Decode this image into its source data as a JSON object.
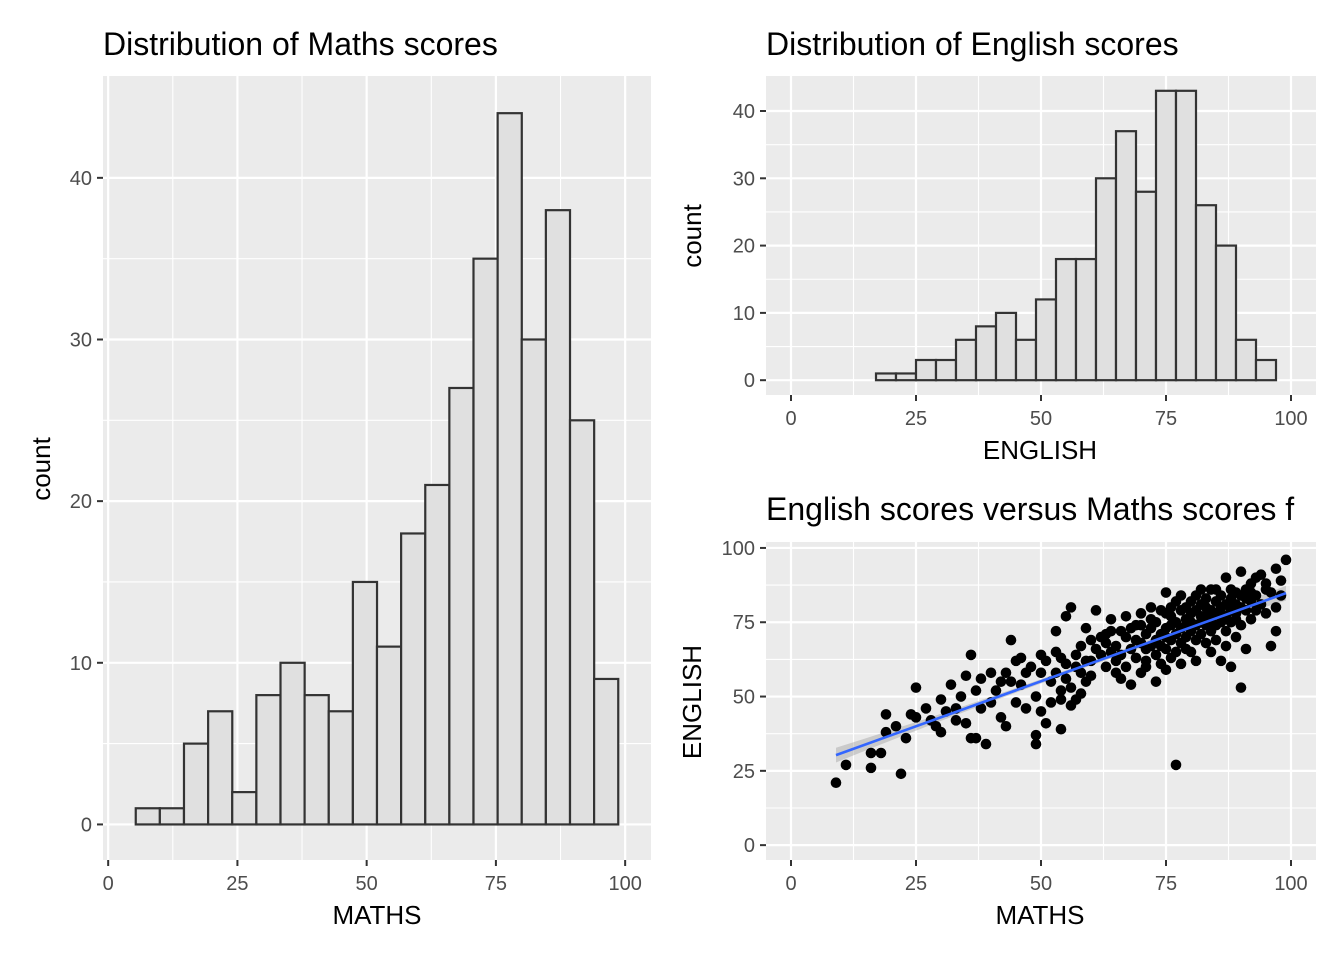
{
  "colors": {
    "panel_background": "#ebebeb",
    "grid": "#ffffff",
    "bar_fill": "#e0e0e0",
    "bar_outline": "#333333",
    "point": "#000000",
    "smooth_line": "#3366ff",
    "confidence_band": "#999999"
  },
  "chart_data": [
    {
      "id": "maths_hist",
      "type": "bar",
      "title": "Distribution of Maths scores",
      "xlabel": "MATHS",
      "ylabel": "count",
      "xlim": [
        -1,
        105
      ],
      "ylim": [
        -2.2,
        46.3
      ],
      "x_ticks": [
        0,
        25,
        50,
        75,
        100
      ],
      "y_ticks": [
        0,
        10,
        20,
        30,
        40
      ],
      "bin_width": 4.67,
      "bin_centers": [
        7.67,
        12.33,
        17.0,
        21.67,
        26.33,
        31.0,
        35.67,
        40.33,
        45.0,
        49.67,
        54.33,
        59.0,
        63.67,
        68.33,
        73.0,
        77.67,
        82.33,
        87.0,
        91.67,
        96.33
      ],
      "values": [
        1,
        1,
        5,
        7,
        2,
        8,
        10,
        8,
        7,
        15,
        11,
        18,
        21,
        27,
        35,
        44,
        30,
        38,
        25,
        9
      ],
      "grid": true,
      "legend": "none"
    },
    {
      "id": "english_hist",
      "type": "bar",
      "title": "Distribution of English scores",
      "xlabel": "ENGLISH",
      "ylabel": "count",
      "xlim": [
        -5,
        105
      ],
      "ylim": [
        -2.2,
        45.2
      ],
      "x_ticks": [
        0,
        25,
        50,
        75,
        100
      ],
      "y_ticks": [
        0,
        10,
        20,
        30,
        40
      ],
      "bin_width": 4.0,
      "bin_centers": [
        19,
        23,
        27,
        31,
        35,
        39,
        43,
        47,
        51,
        55,
        59,
        63,
        67,
        71,
        75,
        79,
        83,
        87,
        91,
        95
      ],
      "values": [
        1,
        1,
        3,
        3,
        6,
        8,
        10,
        6,
        12,
        18,
        18,
        30,
        37,
        28,
        43,
        43,
        26,
        20,
        6,
        3
      ],
      "grid": true,
      "legend": "none"
    },
    {
      "id": "scatter_english_maths",
      "type": "scatter",
      "title": "English scores versus Maths scores f",
      "xlabel": "MATHS",
      "ylabel": "ENGLISH",
      "xlim": [
        -5,
        105
      ],
      "ylim": [
        -5,
        102
      ],
      "x_ticks": [
        0,
        25,
        50,
        75,
        100
      ],
      "y_ticks": [
        0,
        25,
        50,
        75,
        100
      ],
      "grid": true,
      "legend": "none",
      "smooth": {
        "method": "linear",
        "x": [
          9,
          99
        ],
        "y": [
          30.3,
          84.8
        ],
        "band_halfwidth_at_ends": 2.5,
        "band_halfwidth_at_center": 0.7
      },
      "points": [
        [
          9,
          21
        ],
        [
          11,
          27
        ],
        [
          16,
          26
        ],
        [
          16,
          31
        ],
        [
          18,
          31
        ],
        [
          19,
          44
        ],
        [
          19,
          38
        ],
        [
          21,
          40
        ],
        [
          22,
          24
        ],
        [
          23,
          36
        ],
        [
          24,
          44
        ],
        [
          25,
          53
        ],
        [
          25,
          43
        ],
        [
          27,
          46
        ],
        [
          28,
          42
        ],
        [
          29,
          40
        ],
        [
          30,
          38
        ],
        [
          30,
          49
        ],
        [
          31,
          45
        ],
        [
          32,
          54
        ],
        [
          33,
          46
        ],
        [
          33,
          42
        ],
        [
          34,
          50
        ],
        [
          35,
          41
        ],
        [
          35,
          57
        ],
        [
          36,
          36
        ],
        [
          36,
          64
        ],
        [
          37,
          52
        ],
        [
          37,
          36
        ],
        [
          38,
          56
        ],
        [
          38,
          46
        ],
        [
          39,
          34
        ],
        [
          40,
          58
        ],
        [
          40,
          48
        ],
        [
          41,
          52
        ],
        [
          42,
          55
        ],
        [
          42,
          43
        ],
        [
          43,
          40
        ],
        [
          43,
          58
        ],
        [
          44,
          69
        ],
        [
          44,
          55
        ],
        [
          45,
          62
        ],
        [
          45,
          48
        ],
        [
          46,
          63
        ],
        [
          46,
          54
        ],
        [
          47,
          46
        ],
        [
          47,
          58
        ],
        [
          48,
          60
        ],
        [
          49,
          50
        ],
        [
          49,
          37
        ],
        [
          49,
          34
        ],
        [
          50,
          45
        ],
        [
          50,
          58
        ],
        [
          50,
          64
        ],
        [
          51,
          62
        ],
        [
          51,
          41
        ],
        [
          52,
          55
        ],
        [
          52,
          48
        ],
        [
          53,
          65
        ],
        [
          53,
          58
        ],
        [
          53,
          72
        ],
        [
          54,
          52
        ],
        [
          54,
          49
        ],
        [
          54,
          39
        ],
        [
          54,
          63
        ],
        [
          55,
          56
        ],
        [
          55,
          61
        ],
        [
          55,
          77
        ],
        [
          56,
          53
        ],
        [
          56,
          47
        ],
        [
          56,
          80
        ],
        [
          57,
          60
        ],
        [
          57,
          49
        ],
        [
          57,
          64
        ],
        [
          58,
          51
        ],
        [
          58,
          58
        ],
        [
          58,
          67
        ],
        [
          59,
          55
        ],
        [
          59,
          62
        ],
        [
          59,
          73
        ],
        [
          60,
          62
        ],
        [
          60,
          69
        ],
        [
          60,
          57
        ],
        [
          61,
          66
        ],
        [
          61,
          79
        ],
        [
          62,
          70
        ],
        [
          62,
          64
        ],
        [
          63,
          68
        ],
        [
          63,
          60
        ],
        [
          63,
          71
        ],
        [
          64,
          65
        ],
        [
          64,
          72
        ],
        [
          64,
          76
        ],
        [
          65,
          67
        ],
        [
          65,
          58
        ],
        [
          65,
          62
        ],
        [
          66,
          72
        ],
        [
          66,
          64
        ],
        [
          66,
          56
        ],
        [
          67,
          70
        ],
        [
          67,
          77
        ],
        [
          67,
          60
        ],
        [
          68,
          73
        ],
        [
          68,
          66
        ],
        [
          68,
          54
        ],
        [
          69,
          74
        ],
        [
          69,
          63
        ],
        [
          69,
          69
        ],
        [
          70,
          68
        ],
        [
          70,
          78
        ],
        [
          70,
          58
        ],
        [
          70,
          74
        ],
        [
          71,
          71
        ],
        [
          71,
          66
        ],
        [
          71,
          60
        ],
        [
          71,
          62
        ],
        [
          72,
          76
        ],
        [
          72,
          80
        ],
        [
          72,
          67
        ],
        [
          72,
          73
        ],
        [
          73,
          69
        ],
        [
          73,
          75
        ],
        [
          73,
          64
        ],
        [
          73,
          55
        ],
        [
          74,
          79
        ],
        [
          74,
          71
        ],
        [
          74,
          67
        ],
        [
          74,
          61
        ],
        [
          75,
          73
        ],
        [
          75,
          85
        ],
        [
          75,
          78
        ],
        [
          75,
          66
        ],
        [
          75,
          59
        ],
        [
          75,
          70
        ],
        [
          76,
          77
        ],
        [
          76,
          74
        ],
        [
          76,
          69
        ],
        [
          76,
          63
        ],
        [
          76,
          80
        ],
        [
          77,
          75
        ],
        [
          77,
          82
        ],
        [
          77,
          71
        ],
        [
          77,
          65
        ],
        [
          77,
          27
        ],
        [
          78,
          79
        ],
        [
          78,
          73
        ],
        [
          78,
          68
        ],
        [
          78,
          84
        ],
        [
          78,
          61
        ],
        [
          79,
          76
        ],
        [
          79,
          80
        ],
        [
          79,
          70
        ],
        [
          79,
          74
        ],
        [
          79,
          66
        ],
        [
          80,
          78
        ],
        [
          80,
          82
        ],
        [
          80,
          72
        ],
        [
          80,
          65
        ],
        [
          80,
          75
        ],
        [
          81,
          79
        ],
        [
          81,
          84
        ],
        [
          81,
          74
        ],
        [
          81,
          69
        ],
        [
          81,
          62
        ],
        [
          82,
          77
        ],
        [
          82,
          81
        ],
        [
          82,
          71
        ],
        [
          82,
          86
        ],
        [
          82,
          75
        ],
        [
          83,
          80
        ],
        [
          83,
          74
        ],
        [
          83,
          68
        ],
        [
          83,
          83
        ],
        [
          83,
          77
        ],
        [
          84,
          79
        ],
        [
          84,
          76
        ],
        [
          84,
          72
        ],
        [
          84,
          86
        ],
        [
          84,
          65
        ],
        [
          85,
          82
        ],
        [
          85,
          78
        ],
        [
          85,
          74
        ],
        [
          85,
          69
        ],
        [
          85,
          86
        ],
        [
          86,
          80
        ],
        [
          86,
          84
        ],
        [
          86,
          75
        ],
        [
          86,
          78
        ],
        [
          86,
          62
        ],
        [
          87,
          77
        ],
        [
          87,
          90
        ],
        [
          87,
          81
        ],
        [
          87,
          72
        ],
        [
          87,
          67
        ],
        [
          88,
          83
        ],
        [
          88,
          79
        ],
        [
          88,
          75
        ],
        [
          88,
          86
        ],
        [
          88,
          60
        ],
        [
          89,
          81
        ],
        [
          89,
          85
        ],
        [
          89,
          76
        ],
        [
          89,
          70
        ],
        [
          89,
          78
        ],
        [
          90,
          84
        ],
        [
          90,
          92
        ],
        [
          90,
          80
        ],
        [
          90,
          74
        ],
        [
          90,
          53
        ],
        [
          91,
          79
        ],
        [
          91,
          83
        ],
        [
          91,
          86
        ],
        [
          91,
          66
        ],
        [
          92,
          82
        ],
        [
          92,
          88
        ],
        [
          92,
          76
        ],
        [
          92,
          85
        ],
        [
          93,
          90
        ],
        [
          93,
          79
        ],
        [
          93,
          84
        ],
        [
          94,
          91
        ],
        [
          94,
          81
        ],
        [
          95,
          86
        ],
        [
          95,
          78
        ],
        [
          95,
          88
        ],
        [
          96,
          67
        ],
        [
          96,
          85
        ],
        [
          97,
          93
        ],
        [
          97,
          72
        ],
        [
          97,
          80
        ],
        [
          98,
          89
        ],
        [
          98,
          84
        ],
        [
          99,
          96
        ]
      ]
    }
  ]
}
